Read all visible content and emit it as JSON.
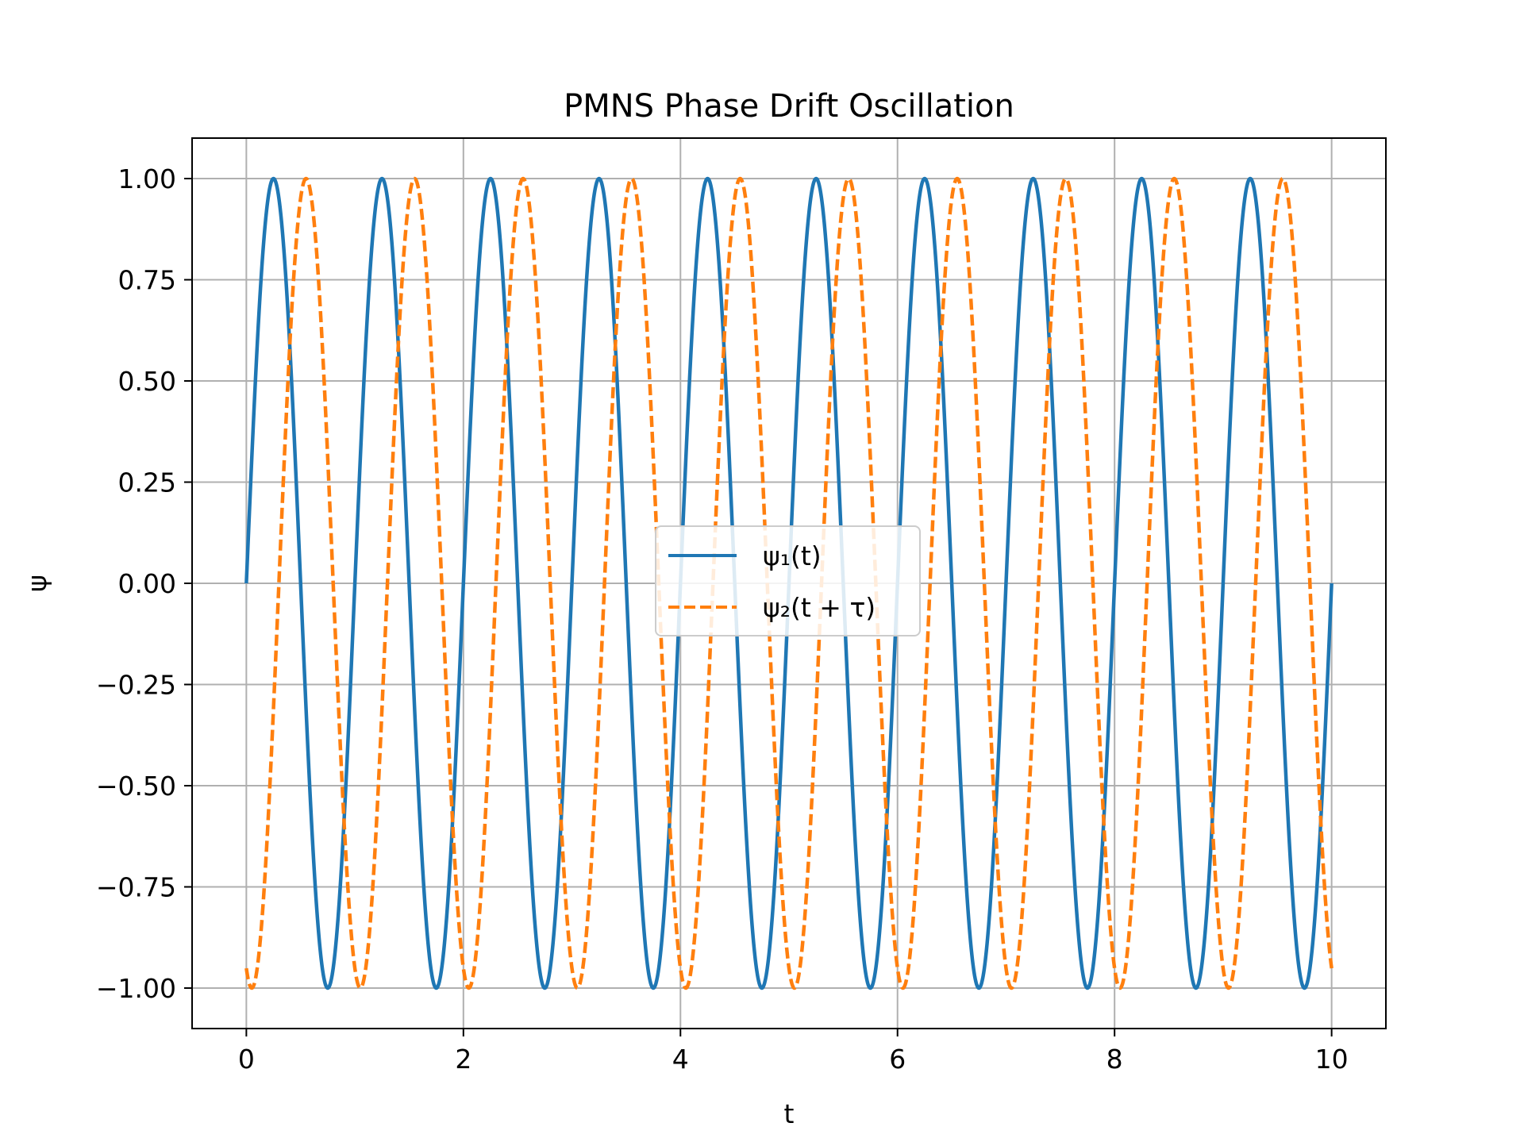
{
  "chart_data": {
    "type": "line",
    "title": "PMNS Phase Drift Oscillation",
    "xlabel": "t",
    "ylabel": "ψ",
    "xlim": [
      -0.5,
      10.5
    ],
    "ylim": [
      -1.1,
      1.1
    ],
    "x_ticks": [
      0,
      2,
      4,
      6,
      8,
      10
    ],
    "x_tick_labels": [
      "0",
      "2",
      "4",
      "6",
      "8",
      "10"
    ],
    "y_ticks": [
      1.0,
      0.75,
      0.5,
      0.25,
      0.0,
      -0.25,
      -0.5,
      -0.75,
      -1.0
    ],
    "y_tick_labels": [
      "1.00",
      "0.75",
      "0.50",
      "0.25",
      "0.00",
      "−0.25",
      "−0.50",
      "−0.75",
      "−1.00"
    ],
    "grid": true,
    "legend_position": "center",
    "series": [
      {
        "name": "ψ₁(t)",
        "color": "#1f77b4",
        "style": "solid",
        "function": "sin(2πt)",
        "x": [
          0,
          0.25,
          0.5,
          0.75,
          1.0,
          1.25,
          1.5,
          1.75,
          2.0,
          2.25,
          2.5,
          2.75,
          3.0,
          3.25,
          3.5,
          3.75,
          4.0,
          4.25,
          4.5,
          4.75,
          5.0,
          5.25,
          5.5,
          5.75,
          6.0,
          6.25,
          6.5,
          6.75,
          7.0,
          7.25,
          7.5,
          7.75,
          8.0,
          8.25,
          8.5,
          8.75,
          9.0,
          9.25,
          9.5,
          9.75,
          10.0
        ],
        "values": [
          0,
          1,
          0,
          -1,
          0,
          1,
          0,
          -1,
          0,
          1,
          0,
          -1,
          0,
          1,
          0,
          -1,
          0,
          1,
          0,
          -1,
          0,
          1,
          0,
          -1,
          0,
          1,
          0,
          -1,
          0,
          1,
          0,
          -1,
          0,
          1,
          0,
          -1,
          0,
          1,
          0,
          -1,
          0
        ]
      },
      {
        "name": "ψ₂(t + τ)",
        "color": "#ff7f0e",
        "style": "dashed",
        "function": "sin(2π(t − 0.3))",
        "x": [
          0,
          0.05,
          0.3,
          0.55,
          0.8,
          1.05,
          1.3,
          1.55,
          1.8,
          2.05,
          2.3,
          2.55,
          2.8,
          3.05,
          3.3,
          3.55,
          3.8,
          4.05,
          4.3,
          4.55,
          4.8,
          5.05,
          5.3,
          5.55,
          5.8,
          6.05,
          6.3,
          6.55,
          6.8,
          7.05,
          7.3,
          7.55,
          7.8,
          8.05,
          8.3,
          8.55,
          8.8,
          9.05,
          9.3,
          9.55,
          9.8,
          10.0
        ],
        "values": [
          -0.95,
          -1,
          0,
          1,
          0,
          -1,
          0,
          1,
          0,
          -1,
          0,
          1,
          0,
          -1,
          0,
          1,
          0,
          -1,
          0,
          1,
          0,
          -1,
          0,
          1,
          0,
          -1,
          0,
          1,
          0,
          -1,
          0,
          1,
          0,
          -1,
          0,
          1,
          0,
          -1,
          0,
          1,
          0,
          -0.95
        ]
      }
    ]
  }
}
